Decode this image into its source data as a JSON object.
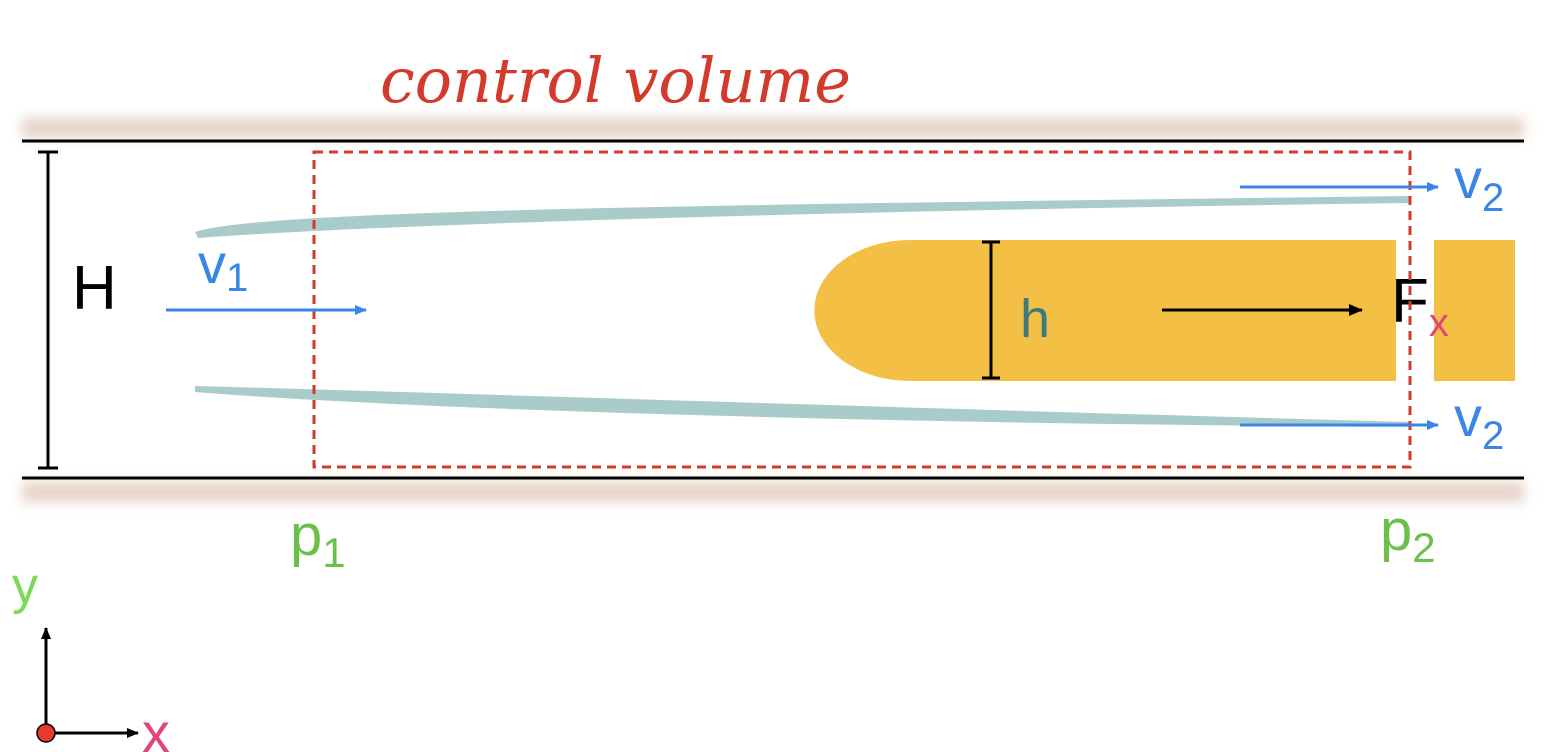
{
  "title": "control volume",
  "labels": {
    "H": "H",
    "h": "h",
    "v1_base": "v",
    "v1_sub": "1",
    "v2_base": "v",
    "v2_sub": "2",
    "F_base": "F",
    "F_sub": "x",
    "p1_base": "p",
    "p1_sub": "1",
    "p2_base": "p",
    "p2_sub": "2",
    "axis_y": "y",
    "axis_x": "x"
  },
  "colors": {
    "title": "#d33a2c",
    "control_volume_border": "#d33a2c",
    "wall": "#000000",
    "wall_shadow": "#e6d3c8",
    "body": "#f4bf45",
    "streamline": "#a9cbca",
    "velocity": "#3a86e6",
    "pressure": "#6cc04a",
    "h_label": "#3d7a7c",
    "subscript_x": "#e0457b",
    "axis_y": "#7ed957",
    "axis_x": "#e0457b",
    "origin": "#e63a2c"
  }
}
